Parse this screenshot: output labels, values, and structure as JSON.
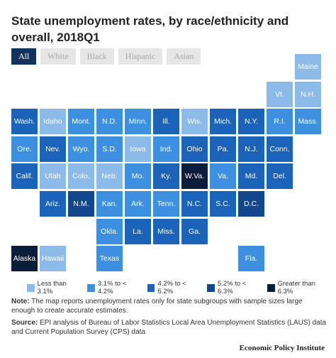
{
  "header": {
    "title": "State unemployment rates, by race/ethnicity and overall, 2018Q1"
  },
  "tabs": [
    "All",
    "White",
    "Black",
    "Hispanic",
    "Asian"
  ],
  "legend": [
    {
      "label": "Less than 3.1%",
      "color": "#8dbbe9"
    },
    {
      "label": "3.1% to < 4.2%",
      "color": "#3d8fe0"
    },
    {
      "label": "4.2% to < 5.2%",
      "color": "#1b63b9"
    },
    {
      "label": "5.2% to < 6.3%",
      "color": "#13468b"
    },
    {
      "label": "Greater than 6.3%",
      "color": "#0c1d3a"
    }
  ],
  "tiles": [
    {
      "label": "Maine",
      "color": "#8dbbe9"
    },
    {
      "label": "Vt.",
      "color": "#8dbbe9"
    },
    {
      "label": "N.H.",
      "color": "#8dbbe9"
    },
    {
      "label": "Wash.",
      "color": "#1b63b9"
    },
    {
      "label": "Idaho",
      "color": "#8dbbe9"
    },
    {
      "label": "Mont.",
      "color": "#3d8fe0"
    },
    {
      "label": "N.D.",
      "color": "#3d8fe0"
    },
    {
      "label": "Minn.",
      "color": "#3d8fe0"
    },
    {
      "label": "Ill.",
      "color": "#1b63b9"
    },
    {
      "label": "Wis.",
      "color": "#8dbbe9"
    },
    {
      "label": "Mich.",
      "color": "#1b63b9"
    },
    {
      "label": "N.Y.",
      "color": "#1b63b9"
    },
    {
      "label": "R.I.",
      "color": "#3d8fe0"
    },
    {
      "label": "Mass.",
      "color": "#3d8fe0"
    },
    {
      "label": "Ore.",
      "color": "#3d8fe0"
    },
    {
      "label": "Nev.",
      "color": "#1b63b9"
    },
    {
      "label": "Wyo.",
      "color": "#3d8fe0"
    },
    {
      "label": "S.D.",
      "color": "#3d8fe0"
    },
    {
      "label": "Iowa",
      "color": "#8dbbe9"
    },
    {
      "label": "Ind.",
      "color": "#3d8fe0"
    },
    {
      "label": "Ohio",
      "color": "#1b63b9"
    },
    {
      "label": "Pa.",
      "color": "#1b63b9"
    },
    {
      "label": "N.J.",
      "color": "#1b63b9"
    },
    {
      "label": "Conn.",
      "color": "#1b63b9"
    },
    {
      "label": "Calif.",
      "color": "#1b63b9"
    },
    {
      "label": "Utah",
      "color": "#8dbbe9"
    },
    {
      "label": "Colo.",
      "color": "#8dbbe9"
    },
    {
      "label": "Neb.",
      "color": "#8dbbe9"
    },
    {
      "label": "Mo.",
      "color": "#3d8fe0"
    },
    {
      "label": "Ky.",
      "color": "#1b63b9"
    },
    {
      "label": "W.Va.",
      "color": "#0c1d3a"
    },
    {
      "label": "Va.",
      "color": "#3d8fe0"
    },
    {
      "label": "Md.",
      "color": "#1b63b9"
    },
    {
      "label": "Del.",
      "color": "#1b63b9"
    },
    {
      "label": "Ariz.",
      "color": "#1b63b9"
    },
    {
      "label": "N.M.",
      "color": "#13468b"
    },
    {
      "label": "Kan.",
      "color": "#3d8fe0"
    },
    {
      "label": "Ark.",
      "color": "#3d8fe0"
    },
    {
      "label": "Tenn.",
      "color": "#3d8fe0"
    },
    {
      "label": "N.C.",
      "color": "#1b63b9"
    },
    {
      "label": "S.C.",
      "color": "#1b63b9"
    },
    {
      "label": "D.C.",
      "color": "#13468b"
    },
    {
      "label": "Okla.",
      "color": "#3d8fe0"
    },
    {
      "label": "La.",
      "color": "#1b63b9"
    },
    {
      "label": "Miss.",
      "color": "#1b63b9"
    },
    {
      "label": "Ga.",
      "color": "#1b63b9"
    },
    {
      "label": "Alaska",
      "color": "#0c1d3a"
    },
    {
      "label": "Hawaii",
      "color": "#8dbbe9"
    },
    {
      "label": "Texas",
      "color": "#3d8fe0"
    },
    {
      "label": "Fla.",
      "color": "#3d8fe0"
    }
  ],
  "note": {
    "label": "Note:",
    "text": "The map reports unemployment rates only for state subgroups with sample sizes large enough to create accurate estimates."
  },
  "source": {
    "label": "Source:",
    "text": "EPI analysis of Bureau of Labor Statistics Local Area Unemployment Statistics (LAUS) data and Current Population Survey (CPS) data"
  },
  "footer": "Economic Policy Institute"
}
